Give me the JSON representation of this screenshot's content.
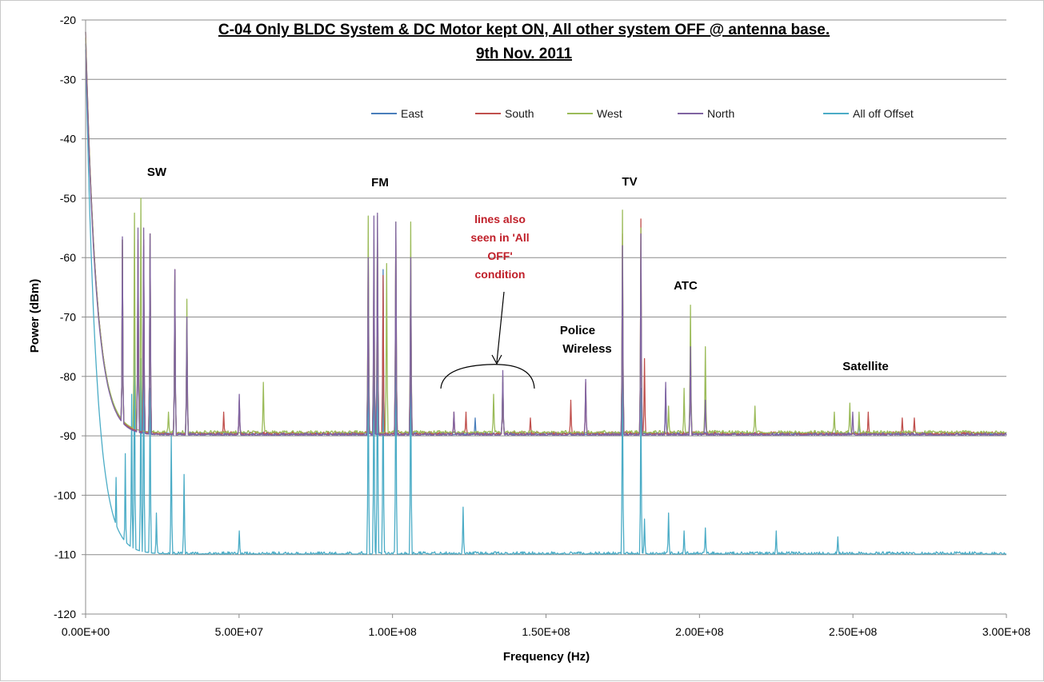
{
  "chart_data": {
    "type": "line",
    "title": "C-04 Only BLDC System & DC Motor kept ON, All other system OFF @ antenna base.",
    "subtitle": "9th Nov. 2011",
    "xlabel": "Frequency (Hz)",
    "ylabel": "Power (dBm)",
    "xlim": [
      0,
      300000000
    ],
    "ylim": [
      -120,
      -20
    ],
    "x_tick_labels": [
      "0.00E+00",
      "5.00E+07",
      "1.00E+08",
      "1.50E+08",
      "2.00E+08",
      "2.50E+08",
      "3.00E+08"
    ],
    "y_ticks": [
      -20,
      -30,
      -40,
      -50,
      -60,
      -70,
      -80,
      -90,
      -100,
      -110,
      -120
    ],
    "grid": "horizontal",
    "legend_position": "top",
    "series": [
      {
        "name": "East",
        "color": "#4a7ebb",
        "floor": -89.8,
        "peaks": [
          [
            0,
            -22
          ],
          [
            1200000,
            -58
          ],
          [
            12000000,
            -57
          ],
          [
            17000000,
            -60
          ],
          [
            19000000,
            -58
          ],
          [
            21000000,
            -58
          ],
          [
            29000000,
            -64
          ],
          [
            33000000,
            -72
          ],
          [
            50000000,
            -84
          ],
          [
            92000000,
            -68
          ],
          [
            94000000,
            -75
          ],
          [
            97000000,
            -62
          ],
          [
            101000000,
            -60
          ],
          [
            106000000,
            -70
          ],
          [
            127000000,
            -87
          ],
          [
            136000000,
            -81
          ],
          [
            175000000,
            -60
          ],
          [
            181000000,
            -62
          ],
          [
            189000000,
            -82
          ],
          [
            197000000,
            -76
          ],
          [
            252000000,
            -87
          ]
        ]
      },
      {
        "name": "South",
        "color": "#c0504d",
        "floor": -89.7,
        "peaks": [
          [
            0,
            -22
          ],
          [
            1200000,
            -58
          ],
          [
            12000000,
            -57
          ],
          [
            17000000,
            -57
          ],
          [
            19000000,
            -57
          ],
          [
            21000000,
            -56
          ],
          [
            29000000,
            -62
          ],
          [
            33000000,
            -71
          ],
          [
            45000000,
            -86
          ],
          [
            50000000,
            -84
          ],
          [
            92000000,
            -58
          ],
          [
            94000000,
            -60
          ],
          [
            95000000,
            -55
          ],
          [
            97000000,
            -63
          ],
          [
            101000000,
            -55
          ],
          [
            106000000,
            -60
          ],
          [
            120000000,
            -86
          ],
          [
            124000000,
            -86
          ],
          [
            136000000,
            -81
          ],
          [
            145000000,
            -87
          ],
          [
            158000000,
            -84
          ],
          [
            163000000,
            -81
          ],
          [
            175000000,
            -56
          ],
          [
            181000000,
            -53.5
          ],
          [
            182000000,
            -77
          ],
          [
            197000000,
            -74
          ],
          [
            255000000,
            -86
          ],
          [
            266000000,
            -87
          ],
          [
            270000000,
            -87
          ]
        ]
      },
      {
        "name": "West",
        "color": "#9bbb59",
        "floor": -89.5,
        "peaks": [
          [
            0,
            -23
          ],
          [
            1200000,
            -58
          ],
          [
            12000000,
            -57
          ],
          [
            16000000,
            -52.5
          ],
          [
            18000000,
            -50
          ],
          [
            21000000,
            -56
          ],
          [
            27000000,
            -86
          ],
          [
            29000000,
            -63
          ],
          [
            33000000,
            -67
          ],
          [
            58000000,
            -81
          ],
          [
            92000000,
            -53
          ],
          [
            94000000,
            -57
          ],
          [
            95000000,
            -53
          ],
          [
            98000000,
            -61
          ],
          [
            101000000,
            -54
          ],
          [
            106000000,
            -54
          ],
          [
            133000000,
            -83
          ],
          [
            136000000,
            -80
          ],
          [
            175000000,
            -52
          ],
          [
            181000000,
            -55
          ],
          [
            190000000,
            -85
          ],
          [
            195000000,
            -82
          ],
          [
            197000000,
            -68
          ],
          [
            202000000,
            -75
          ],
          [
            218000000,
            -85
          ],
          [
            244000000,
            -86
          ],
          [
            249000000,
            -84.5
          ],
          [
            252000000,
            -86
          ]
        ]
      },
      {
        "name": "North",
        "color": "#8064a2",
        "floor": -89.9,
        "peaks": [
          [
            0,
            -24
          ],
          [
            1200000,
            -58
          ],
          [
            12000000,
            -56.5
          ],
          [
            17000000,
            -55
          ],
          [
            19000000,
            -55
          ],
          [
            21000000,
            -56
          ],
          [
            29000000,
            -62
          ],
          [
            33000000,
            -70
          ],
          [
            50000000,
            -83
          ],
          [
            92000000,
            -60
          ],
          [
            94000000,
            -53
          ],
          [
            95000000,
            -52.5
          ],
          [
            101000000,
            -54
          ],
          [
            106000000,
            -60
          ],
          [
            120000000,
            -86
          ],
          [
            136000000,
            -79
          ],
          [
            163000000,
            -80.5
          ],
          [
            175000000,
            -58
          ],
          [
            181000000,
            -56
          ],
          [
            189000000,
            -81
          ],
          [
            197000000,
            -75
          ],
          [
            202000000,
            -84
          ],
          [
            250000000,
            -86
          ]
        ]
      },
      {
        "name": "All off Offset",
        "color": "#4bacc6",
        "floor": -109.9,
        "peaks": [
          [
            0,
            -25
          ],
          [
            1000000,
            -70
          ],
          [
            10000000,
            -97
          ],
          [
            13000000,
            -93
          ],
          [
            15000000,
            -83
          ],
          [
            16000000,
            -73
          ],
          [
            18000000,
            -77
          ],
          [
            19000000,
            -75
          ],
          [
            21000000,
            -82
          ],
          [
            23000000,
            -103
          ],
          [
            28000000,
            -90
          ],
          [
            32000000,
            -96.5
          ],
          [
            50000000,
            -106
          ],
          [
            92000000,
            -78
          ],
          [
            94000000,
            -74
          ],
          [
            95000000,
            -73
          ],
          [
            97000000,
            -76
          ],
          [
            101000000,
            -74.5
          ],
          [
            106000000,
            -77
          ],
          [
            123000000,
            -102
          ],
          [
            175000000,
            -79
          ],
          [
            181000000,
            -82
          ],
          [
            182000000,
            -104
          ],
          [
            190000000,
            -103
          ],
          [
            195000000,
            -106
          ],
          [
            202000000,
            -105.5
          ],
          [
            225000000,
            -106
          ],
          [
            245000000,
            -107
          ]
        ]
      }
    ]
  },
  "annotations": [
    {
      "text": "SW",
      "style": "bold"
    },
    {
      "text": "FM",
      "style": "bold"
    },
    {
      "text": "TV",
      "style": "bold"
    },
    {
      "text": "ATC",
      "style": "bold"
    },
    {
      "text": "Police",
      "style": "bold"
    },
    {
      "text": "Wireless",
      "style": "bold"
    },
    {
      "text": "Satellite",
      "style": "bold"
    },
    {
      "text": "lines also",
      "style": "red"
    },
    {
      "text": "seen in 'All",
      "style": "red"
    },
    {
      "text": "OFF'",
      "style": "red"
    },
    {
      "text": "condition",
      "style": "red"
    }
  ]
}
